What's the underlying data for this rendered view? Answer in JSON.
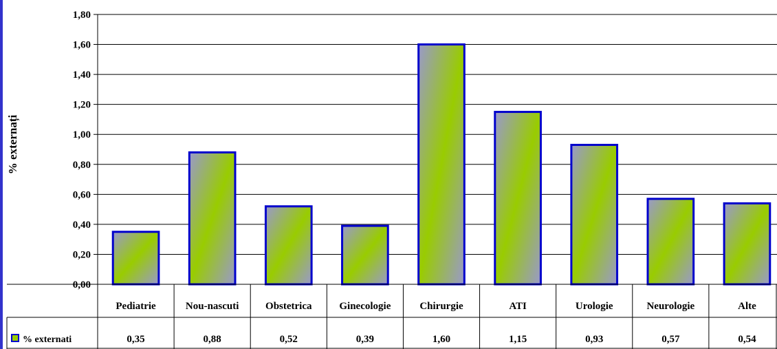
{
  "chart_data": {
    "type": "bar",
    "ylabel": "% externați",
    "categories": [
      "Pediatrie",
      "Nou-nascuti",
      "Obstetrica",
      "Ginecologie",
      "Chirurgie",
      "ATI",
      "Urologie",
      "Neurologie",
      "Alte"
    ],
    "series": [
      {
        "name": "% externati",
        "values": [
          0.35,
          0.88,
          0.52,
          0.39,
          1.6,
          1.15,
          0.93,
          0.57,
          0.54
        ]
      }
    ],
    "value_labels": [
      "0,35",
      "0,88",
      "0,52",
      "0,39",
      "1,60",
      "1,15",
      "0,93",
      "0,57",
      "0,54"
    ],
    "y_ticks": [
      "0,00",
      "0,20",
      "0,40",
      "0,60",
      "0,80",
      "1,00",
      "1,20",
      "1,40",
      "1,60",
      "1,80"
    ],
    "ylim": [
      0,
      1.8
    ],
    "grid": true,
    "data_table": true,
    "colors": {
      "bar_fill_a": "#9999cc",
      "bar_fill_b": "#99cc00",
      "bar_border": "#0000cc",
      "grid": "#000000"
    }
  }
}
